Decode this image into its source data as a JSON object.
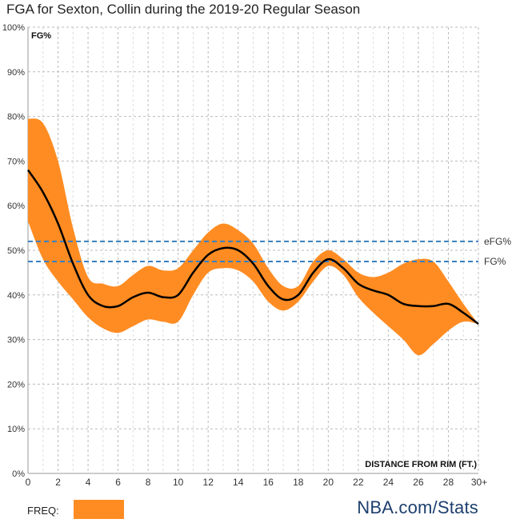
{
  "title": "FGA for Sexton, Collin during the 2019-20 Regular Season",
  "legend": {
    "freq_label": "FREQ:"
  },
  "brand": "NBA.com/Stats",
  "colors": {
    "band": "#ff8c22",
    "line": "#000000",
    "ref_line": "#3a7fc1",
    "grid": "#bbbbbb",
    "brand": "#1d3f6e"
  },
  "chart_data": {
    "type": "line",
    "title": "FGA for Sexton, Collin during the 2019-20 Regular Season",
    "ylabel": "FG%",
    "xlabel": "DISTANCE FROM RIM (FT.)",
    "xlim": [
      0,
      30
    ],
    "ylim": [
      0,
      100
    ],
    "x_ticks": [
      0,
      2,
      4,
      6,
      8,
      10,
      12,
      14,
      16,
      18,
      20,
      22,
      24,
      26,
      28,
      30
    ],
    "x_tick_labels": [
      "0",
      "2",
      "4",
      "6",
      "8",
      "10",
      "12",
      "14",
      "16",
      "18",
      "20",
      "22",
      "24",
      "26",
      "28",
      "30+"
    ],
    "y_ticks": [
      0,
      10,
      20,
      30,
      40,
      50,
      60,
      70,
      80,
      90,
      100
    ],
    "y_tick_labels": [
      "0%",
      "10%",
      "20%",
      "30%",
      "40%",
      "50%",
      "60%",
      "70%",
      "80%",
      "90%",
      "100%"
    ],
    "grid": true,
    "series": [
      {
        "name": "FG%",
        "x": [
          0,
          1,
          2,
          3,
          4,
          5,
          6,
          7,
          8,
          9,
          10,
          11,
          12,
          13,
          14,
          15,
          16,
          17,
          18,
          19,
          20,
          21,
          22,
          23,
          24,
          25,
          26,
          27,
          28,
          29,
          30
        ],
        "values": [
          68,
          63,
          56,
          47,
          40,
          37.5,
          37.5,
          39.5,
          40.5,
          39.5,
          40,
          45,
          49,
          50.5,
          50,
          47,
          42,
          39,
          40,
          45,
          48,
          46,
          42.5,
          41,
          40,
          38,
          37.5,
          37.5,
          38,
          36,
          33.5
        ]
      }
    ],
    "band": {
      "name": "FREQ",
      "x": [
        0,
        1,
        2,
        3,
        4,
        5,
        6,
        7,
        8,
        9,
        10,
        11,
        12,
        13,
        14,
        15,
        16,
        17,
        18,
        19,
        20,
        21,
        22,
        23,
        24,
        25,
        26,
        27,
        28,
        29,
        30
      ],
      "upper": [
        79.5,
        78.5,
        70,
        55,
        44,
        42.5,
        42,
        44.5,
        46.5,
        45.5,
        46,
        50,
        54,
        56,
        54.5,
        51.5,
        46,
        42,
        42,
        47.5,
        50,
        48,
        45,
        44,
        45,
        47,
        48,
        47.5,
        43,
        38,
        33.5
      ],
      "lower": [
        56.5,
        48,
        43,
        39,
        35,
        32.5,
        31.5,
        33,
        34.5,
        34,
        34,
        40,
        45,
        46,
        45.5,
        43,
        38.5,
        36.5,
        38.5,
        43,
        46.5,
        44.5,
        39.5,
        36,
        33,
        30,
        26.5,
        29,
        32,
        34,
        33.5
      ]
    },
    "reference_lines": [
      {
        "label": "eFG%",
        "value": 52
      },
      {
        "label": "FG%",
        "value": 47.5
      }
    ]
  }
}
